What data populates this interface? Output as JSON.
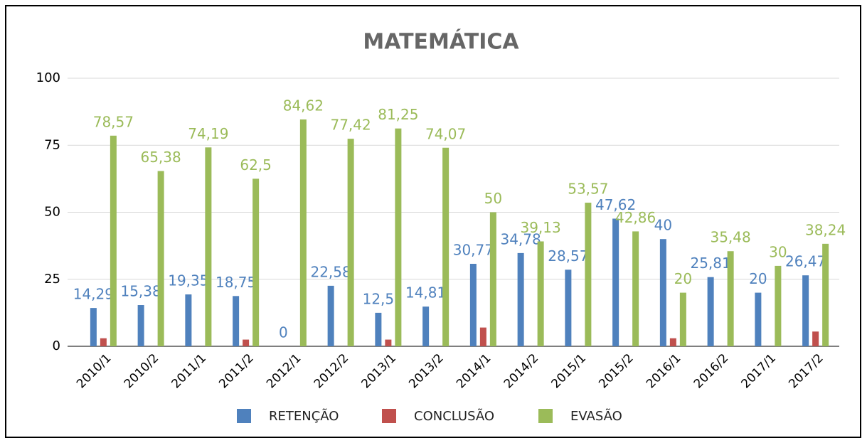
{
  "chart_data": {
    "type": "bar",
    "title": "MATEMÁTICA",
    "categories": [
      "2010/1",
      "2010/2",
      "2011/1",
      "2011/2",
      "2012/1",
      "2012/2",
      "2013/1",
      "2013/2",
      "2014/1",
      "2014/2",
      "2015/1",
      "2015/2",
      "2016/1",
      "2016/2",
      "2017/1",
      "2017/2"
    ],
    "series": [
      {
        "name": "RETENÇÃO",
        "color": "#4f81bd",
        "values": [
          14.29,
          15.38,
          19.35,
          18.75,
          0,
          22.58,
          12.5,
          14.81,
          30.77,
          34.78,
          28.57,
          47.62,
          40,
          25.81,
          20,
          26.47
        ],
        "value_labels": [
          "14,29",
          "15,38",
          "19,35",
          "18,75",
          "0",
          "22,58",
          "12,5",
          "14,81",
          "30,77",
          "34,78",
          "28,57",
          "47,62",
          "40",
          "25,81",
          "20",
          "26,47"
        ]
      },
      {
        "name": "CONCLUSÃO",
        "color": "#c0504d",
        "values": [
          3,
          0,
          0,
          2.5,
          0,
          0,
          2.5,
          0,
          7,
          0,
          0,
          0,
          3,
          0,
          0,
          5.5
        ]
      },
      {
        "name": "EVASÃO",
        "color": "#9bbb59",
        "values": [
          78.57,
          65.38,
          74.19,
          62.5,
          84.62,
          77.42,
          81.25,
          74.07,
          50,
          39.13,
          53.57,
          42.86,
          20,
          35.48,
          30,
          38.24
        ],
        "value_labels": [
          "78,57",
          "65,38",
          "74,19",
          "62,5",
          "84,62",
          "77,42",
          "81,25",
          "74,07",
          "50",
          "39,13",
          "53,57",
          "42,86",
          "20",
          "35,48",
          "30",
          "38,24"
        ]
      }
    ],
    "ylim": [
      0,
      100
    ],
    "yticks": [
      0,
      25,
      50,
      75,
      100
    ],
    "grid": true
  }
}
